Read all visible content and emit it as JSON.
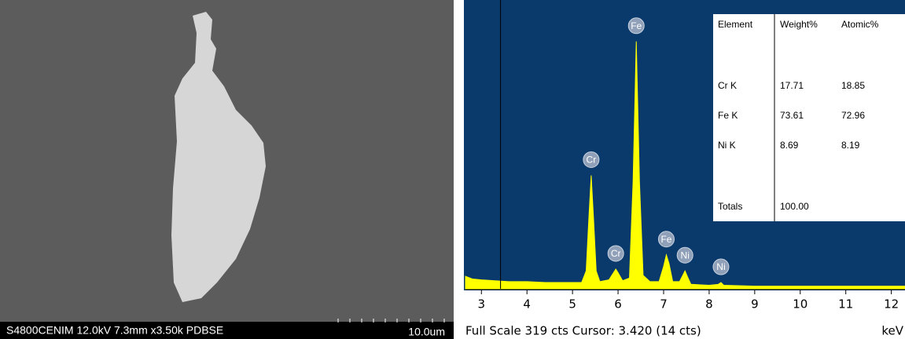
{
  "sem_image": {
    "caption": "S4800CENIM 12.0kV 7.3mm x3.50k PDBSE",
    "scale": "10.0um"
  },
  "chart_data": {
    "type": "area",
    "color": "#ffff00",
    "x": [
      2.65,
      2.8,
      3.0,
      3.3,
      3.6,
      4.0,
      4.4,
      4.8,
      5.2,
      5.3,
      5.36,
      5.41,
      5.46,
      5.52,
      5.6,
      5.8,
      5.9,
      5.95,
      6.0,
      6.1,
      6.25,
      6.33,
      6.4,
      6.47,
      6.55,
      6.7,
      6.9,
      7.0,
      7.06,
      7.12,
      7.2,
      7.35,
      7.42,
      7.47,
      7.52,
      7.6,
      8.0,
      8.2,
      8.26,
      8.32,
      9,
      10,
      11,
      12,
      12.3
    ],
    "values": [
      14,
      11,
      10,
      9,
      8,
      8,
      7,
      7,
      7,
      20,
      80,
      127,
      80,
      20,
      8,
      10,
      18,
      22,
      18,
      9,
      12,
      120,
      277,
      120,
      15,
      8,
      8,
      25,
      38,
      28,
      8,
      8,
      15,
      20,
      14,
      5,
      4,
      5,
      7,
      4,
      3,
      3,
      3,
      3,
      3
    ],
    "xlim": [
      2.65,
      12.3
    ],
    "ylim": [
      0,
      319
    ],
    "xticks": [
      3,
      4,
      5,
      6,
      7,
      8,
      9,
      10,
      11,
      12
    ],
    "x_label": "keV",
    "cursor": 3.42,
    "status": "Full Scale 319 cts Cursor: 3.420  (14 cts)",
    "peaks": [
      {
        "label": "Cr",
        "x": 5.41
      },
      {
        "label": "Cr",
        "x": 5.95
      },
      {
        "label": "Fe",
        "x": 6.4
      },
      {
        "label": "Fe",
        "x": 7.06
      },
      {
        "label": "Ni",
        "x": 7.47
      },
      {
        "label": "Ni",
        "x": 8.26
      }
    ]
  },
  "table": {
    "header": [
      "Element",
      "Weight%",
      "Atomic%"
    ],
    "rows": [
      [
        "Cr K",
        "17.71",
        "18.85"
      ],
      [
        "Fe K",
        "73.61",
        "72.96"
      ],
      [
        "Ni K",
        "8.69",
        "8.19"
      ],
      [
        "Totals",
        "100.00",
        ""
      ]
    ]
  }
}
